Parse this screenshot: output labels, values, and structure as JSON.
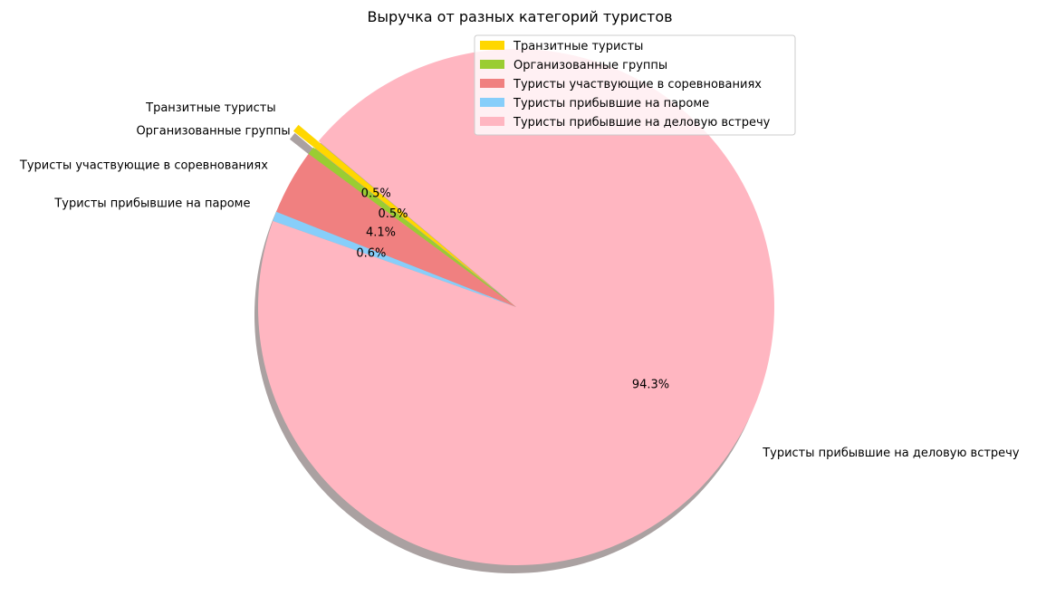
{
  "chart_data": {
    "type": "pie",
    "title": "Выручка от разных категорий туристов",
    "categories": [
      "Транзитные туристы",
      "Организованные группы",
      "Туристы участвующие в соревнованиях",
      "Туристы прибывшие на пароме",
      "Туристы прибывшие на деловую встречу"
    ],
    "values": [
      0.5,
      0.5,
      4.1,
      0.6,
      94.3
    ],
    "value_labels": [
      "0.5%",
      "0.5%",
      "4.1%",
      "0.6%",
      "94.3%"
    ],
    "colors": [
      "#ffd700",
      "#9acd32",
      "#f08080",
      "#87cefa",
      "#ffb6c1"
    ],
    "explode": [
      0.1,
      0,
      0,
      0,
      0
    ],
    "start_angle_deg": 140,
    "direction": "counterclockwise",
    "shadow": true,
    "legend": {
      "placement": "top-right",
      "entries": [
        "Транзитные туристы",
        "Организованные группы",
        "Туристы участвующие в соревнованиях",
        "Туристы прибывшие на пароме",
        "Туристы прибывшие на деловую встречу"
      ]
    }
  }
}
